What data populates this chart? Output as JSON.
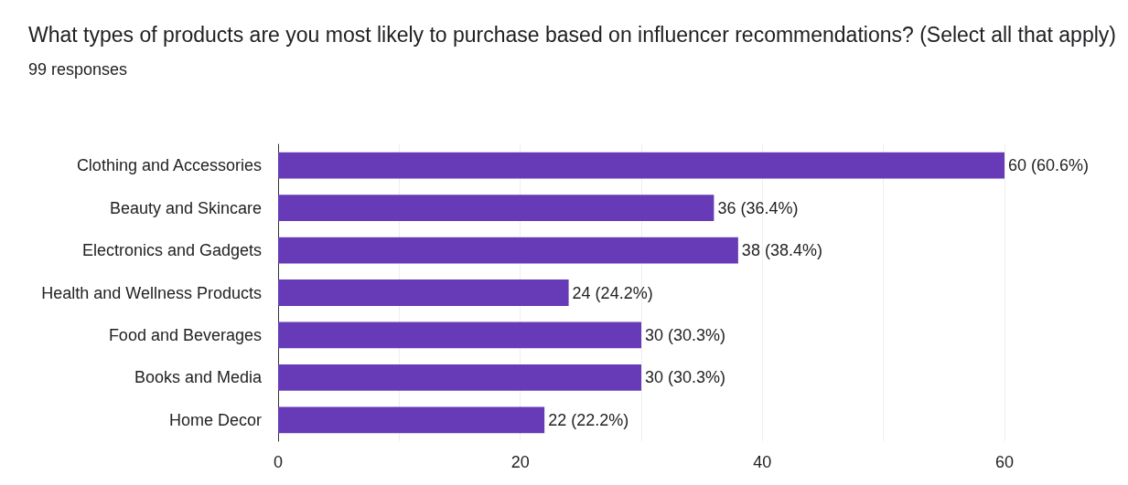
{
  "chart_data": {
    "type": "bar",
    "orientation": "horizontal",
    "title": "What types of products are you most likely to purchase based on influencer recommendations? (Select all that apply)",
    "subtitle": "99 responses",
    "categories": [
      "Clothing and Accessories",
      "Beauty and Skincare",
      "Electronics and Gadgets",
      "Health and Wellness Products",
      "Food and Beverages",
      "Books and Media",
      "Home Decor"
    ],
    "values": [
      60,
      36,
      38,
      24,
      30,
      30,
      22
    ],
    "value_labels": [
      "60 (60.6%)",
      "36 (36.4%)",
      "38 (38.4%)",
      "24 (24.2%)",
      "30 (30.3%)",
      "30 (30.3%)",
      "22 (22.2%)"
    ],
    "color": "#673ab7",
    "xlim": [
      0,
      60
    ],
    "xticks": [
      0,
      {
        "value": 10,
        "label": null
      },
      20,
      {
        "value": 30,
        "label": null
      },
      40,
      {
        "value": 50,
        "label": null
      },
      60
    ],
    "grid": "x"
  }
}
